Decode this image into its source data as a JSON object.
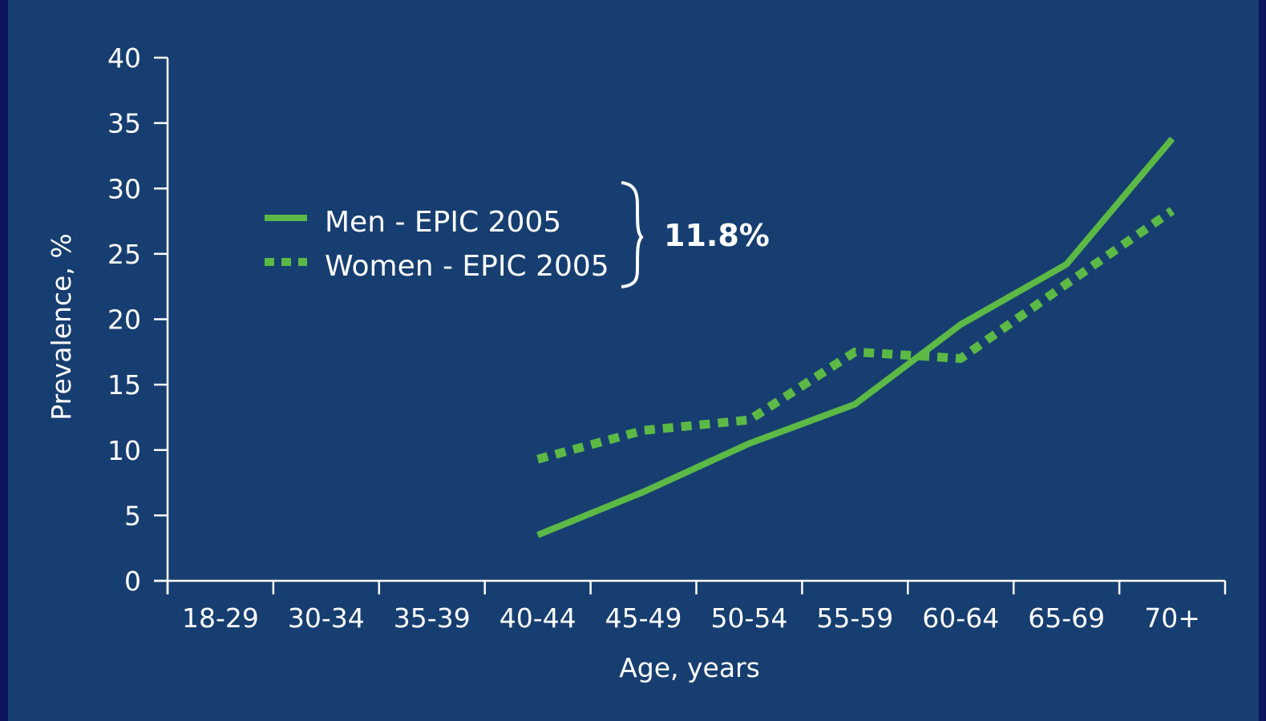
{
  "chart_data": {
    "type": "line",
    "xlabel": "Age, years",
    "ylabel": "Prevalence, %",
    "ylim": [
      0,
      40
    ],
    "yticks": [
      "0",
      "5",
      "10",
      "15",
      "20",
      "25",
      "30",
      "35",
      "40"
    ],
    "categories": [
      "18-29",
      "30-34",
      "35-39",
      "40-44",
      "45-49",
      "50-54",
      "55-59",
      "60-64",
      "65-69",
      "70+"
    ],
    "series": [
      {
        "name": "Men - EPIC 2005",
        "style": "solid",
        "color": "#5cb946",
        "values": [
          null,
          null,
          null,
          3.5,
          6.8,
          10.5,
          13.5,
          19.6,
          24.2,
          33.8
        ]
      },
      {
        "name": "Women - EPIC 2005",
        "style": "dotted",
        "color": "#5cb946",
        "values": [
          null,
          null,
          null,
          9.3,
          11.5,
          12.3,
          17.5,
          17.0,
          22.7,
          28.3
        ]
      }
    ],
    "annotation": "11.8%",
    "legend_position": "upper-left",
    "grid": false,
    "axis_color": "#ffffff",
    "background": "#173e70"
  }
}
